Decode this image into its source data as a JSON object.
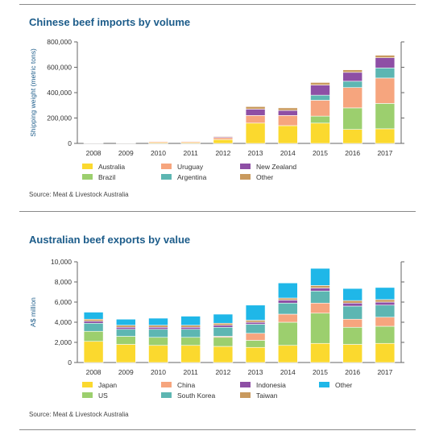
{
  "chart_data": [
    {
      "type": "bar",
      "stacked": true,
      "title": "Chinese beef imports by volume",
      "ylabel": "Shipping weight (metric tons)",
      "xlabel": "",
      "ylim": [
        0,
        800000
      ],
      "yticks": [
        0,
        200000,
        400000,
        600000,
        800000
      ],
      "ytick_labels": [
        "0",
        "200,000",
        "400,000",
        "600,000",
        "800,000"
      ],
      "grid": false,
      "legend_position": "bottom",
      "categories": [
        "2008",
        "2009",
        "2010",
        "2011",
        "2012",
        "2013",
        "2014",
        "2015",
        "2016",
        "2017"
      ],
      "series": [
        {
          "name": "Australia",
          "color": "#fbd92e",
          "values": [
            3000,
            2000,
            7000,
            7000,
            30000,
            160000,
            140000,
            160000,
            110000,
            115000
          ]
        },
        {
          "name": "Brazil",
          "color": "#9ccf6e",
          "values": [
            0,
            0,
            0,
            0,
            0,
            0,
            0,
            55000,
            170000,
            200000
          ]
        },
        {
          "name": "Uruguay",
          "color": "#f6a57e",
          "values": [
            2000,
            2000,
            8000,
            8000,
            15000,
            60000,
            80000,
            125000,
            160000,
            200000
          ]
        },
        {
          "name": "Argentina",
          "color": "#5db6b2",
          "values": [
            0,
            0,
            0,
            0,
            0,
            0,
            0,
            40000,
            50000,
            80000
          ]
        },
        {
          "name": "New Zealand",
          "color": "#8e4fa5",
          "values": [
            0,
            0,
            2000,
            3000,
            7000,
            50000,
            40000,
            80000,
            70000,
            80000
          ]
        },
        {
          "name": "Other",
          "color": "#c99a5e",
          "values": [
            0,
            0,
            2000,
            2000,
            5000,
            20000,
            20000,
            20000,
            20000,
            20000
          ]
        }
      ],
      "source": "Source: Meat & Livestock Australia"
    },
    {
      "type": "bar",
      "stacked": true,
      "title": "Australian beef exports by value",
      "ylabel": "A$ million",
      "xlabel": "",
      "ylim": [
        0,
        10000
      ],
      "yticks": [
        0,
        2000,
        4000,
        6000,
        8000,
        10000
      ],
      "ytick_labels": [
        "0",
        "2,000",
        "4,000",
        "6,000",
        "8,000",
        "10,000"
      ],
      "grid": false,
      "legend_position": "bottom",
      "categories": [
        "2008",
        "2009",
        "2010",
        "2011",
        "2012",
        "2013",
        "2014",
        "2015",
        "2016",
        "2017"
      ],
      "series": [
        {
          "name": "Japan",
          "color": "#fbd92e",
          "values": [
            2100,
            1800,
            1700,
            1700,
            1600,
            1500,
            1700,
            1900,
            1800,
            1900
          ]
        },
        {
          "name": "US",
          "color": "#9ccf6e",
          "values": [
            1000,
            800,
            800,
            800,
            900,
            700,
            2300,
            3000,
            1700,
            1700
          ]
        },
        {
          "name": "China",
          "color": "#f6a57e",
          "values": [
            0,
            0,
            0,
            0,
            100,
            700,
            800,
            1000,
            800,
            900
          ]
        },
        {
          "name": "South Korea",
          "color": "#5db6b2",
          "values": [
            800,
            700,
            800,
            800,
            900,
            900,
            1100,
            1200,
            1300,
            1200
          ]
        },
        {
          "name": "Indonesia",
          "color": "#8e4fa5",
          "values": [
            200,
            200,
            200,
            200,
            200,
            200,
            300,
            300,
            300,
            300
          ]
        },
        {
          "name": "Taiwan",
          "color": "#c99a5e",
          "values": [
            200,
            200,
            200,
            200,
            200,
            200,
            200,
            250,
            250,
            250
          ]
        },
        {
          "name": "Other",
          "color": "#1fb7e8",
          "values": [
            700,
            600,
            700,
            900,
            900,
            1500,
            1500,
            1700,
            1200,
            1200
          ]
        }
      ],
      "source": "Source: Meat & Livestock Australia"
    }
  ]
}
